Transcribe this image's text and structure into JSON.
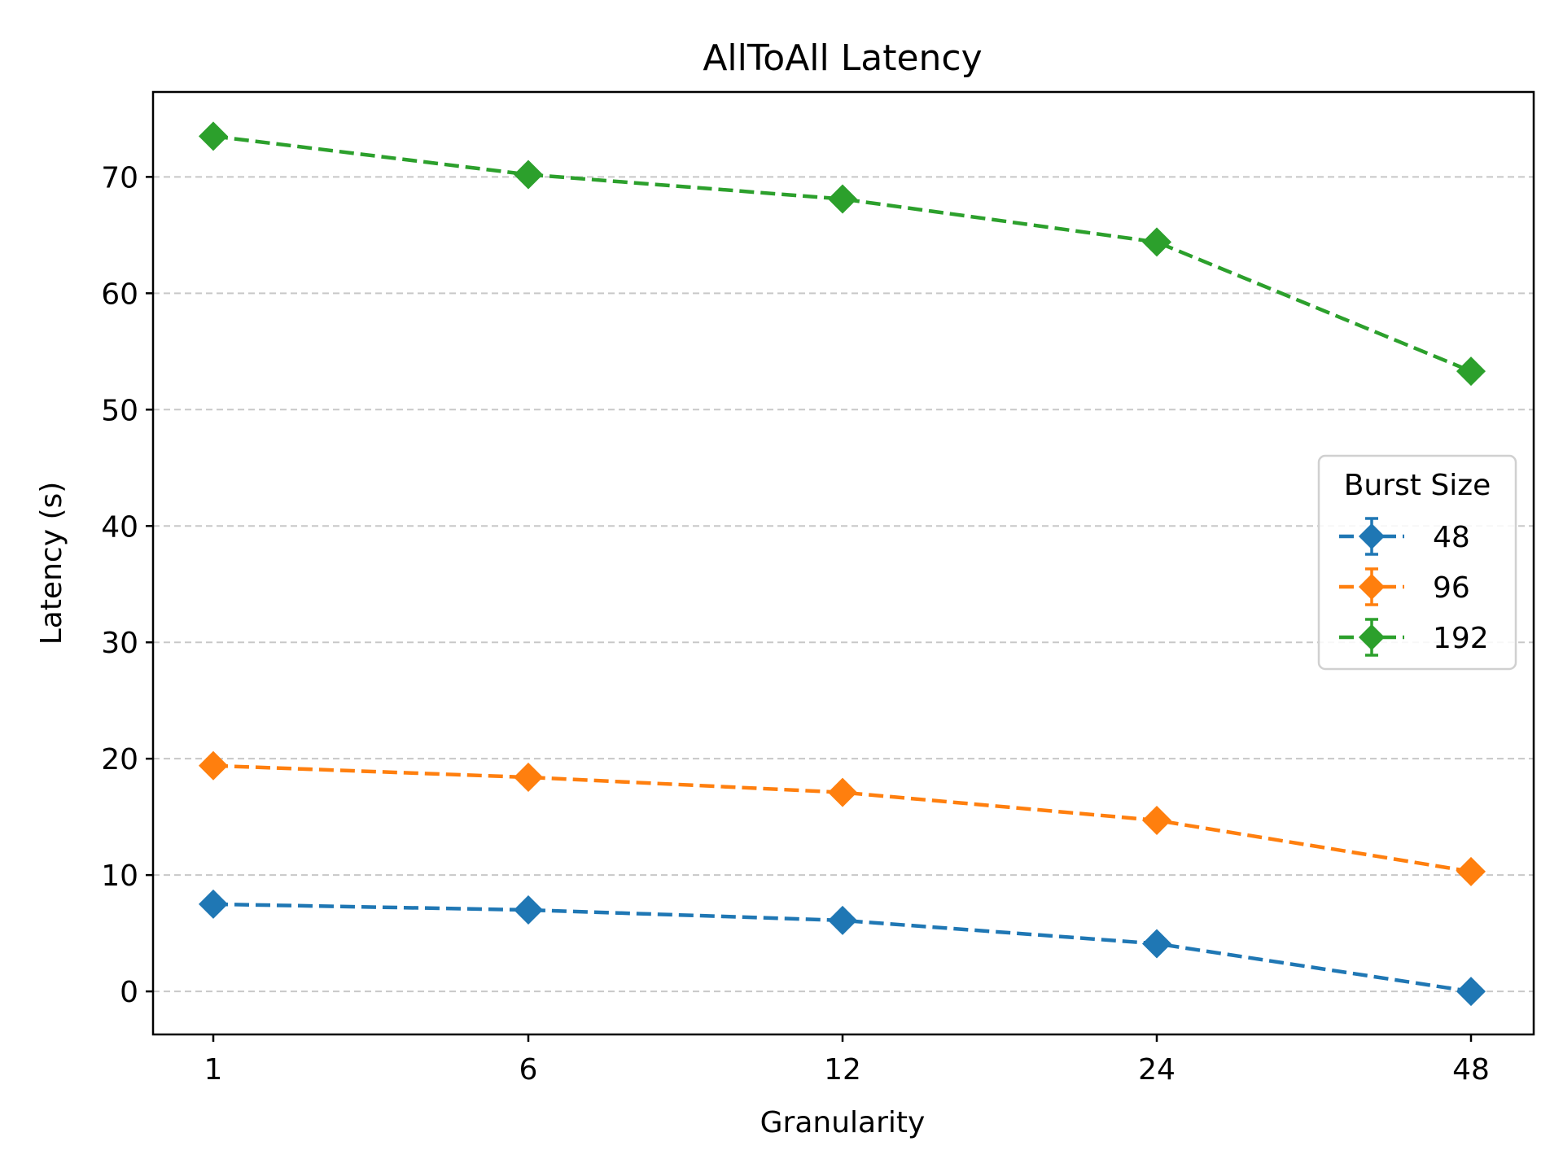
{
  "chart_data": {
    "type": "line",
    "title": "AllToAll Latency",
    "xlabel": "Granularity",
    "ylabel": "Latency (s)",
    "categories": [
      "1",
      "6",
      "12",
      "24",
      "48"
    ],
    "ylim": [
      -3.7,
      77.3
    ],
    "yticks": [
      0,
      10,
      20,
      30,
      40,
      50,
      60,
      70
    ],
    "grid": "y-dashed",
    "legend": {
      "title": "Burst Size",
      "position": "center-right"
    },
    "series": [
      {
        "name": "48",
        "color": "#1f77b4",
        "values": [
          7.5,
          7.0,
          6.1,
          4.1,
          0.0
        ]
      },
      {
        "name": "96",
        "color": "#ff7f0e",
        "values": [
          19.4,
          18.4,
          17.1,
          14.7,
          10.3
        ]
      },
      {
        "name": "192",
        "color": "#2ca02c",
        "values": [
          73.5,
          70.2,
          68.1,
          64.4,
          53.3
        ]
      }
    ]
  }
}
